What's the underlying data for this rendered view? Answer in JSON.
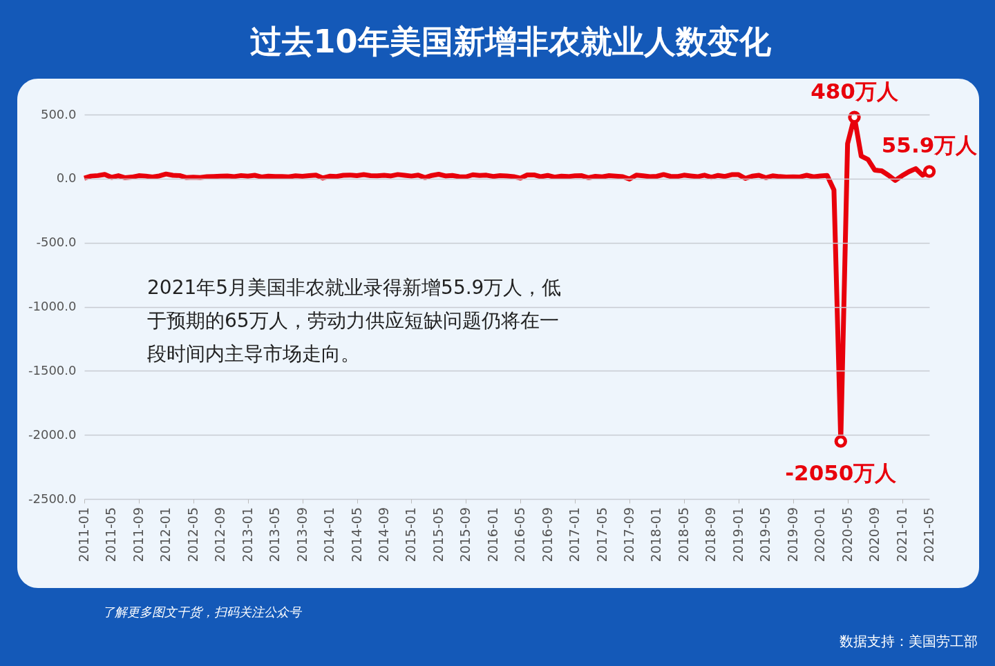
{
  "chart_data": {
    "type": "line",
    "title": "过去10年美国新增非农就业人数变化",
    "categories": [
      "2011-01",
      null,
      null,
      null,
      "2011-05",
      null,
      null,
      null,
      "2011-09",
      null,
      null,
      null,
      "2012-01",
      null,
      null,
      null,
      "2012-05",
      null,
      null,
      null,
      "2012-09",
      null,
      null,
      null,
      "2013-01",
      null,
      null,
      null,
      "2013-05",
      null,
      null,
      null,
      "2013-09",
      null,
      null,
      null,
      "2014-01",
      null,
      null,
      null,
      "2014-05",
      null,
      null,
      null,
      "2014-09",
      null,
      null,
      null,
      "2015-01",
      null,
      null,
      null,
      "2015-05",
      null,
      null,
      null,
      "2015-09",
      null,
      null,
      null,
      "2016-01",
      null,
      null,
      null,
      "2016-05",
      null,
      null,
      null,
      "2016-09",
      null,
      null,
      null,
      "2017-01",
      null,
      null,
      null,
      "2017-05",
      null,
      null,
      null,
      "2017-09",
      null,
      null,
      null,
      "2018-01",
      null,
      null,
      null,
      "2018-05",
      null,
      null,
      null,
      "2018-09",
      null,
      null,
      null,
      "2019-01",
      null,
      null,
      null,
      "2019-05",
      null,
      null,
      null,
      "2019-09",
      null,
      null,
      null,
      "2020-01",
      null,
      null,
      null,
      "2020-05",
      null,
      null,
      null,
      "2020-09",
      null,
      null,
      null,
      "2021-01",
      null,
      null,
      null,
      "2021-05"
    ],
    "series": [
      {
        "color": "#e8000b",
        "values": [
          4,
          20,
          24,
          33,
          10,
          23,
          7,
          12,
          23,
          20,
          13,
          21,
          36,
          26,
          24,
          8,
          11,
          9,
          15,
          17,
          19,
          21,
          16,
          24,
          19,
          26,
          13,
          19,
          17,
          17,
          14,
          22,
          18,
          23,
          27,
          5,
          19,
          17,
          26,
          28,
          23,
          31,
          23,
          22,
          26,
          21,
          32,
          26,
          20,
          27,
          8,
          25,
          34,
          21,
          25,
          15,
          14,
          30,
          25,
          27,
          17,
          23,
          21,
          16,
          4,
          29,
          29,
          15,
          25,
          12,
          19,
          16,
          22,
          23,
          7,
          18,
          14,
          23,
          19,
          15,
          -3,
          27,
          22,
          15,
          18,
          32,
          18,
          16,
          27,
          21,
          15,
          27,
          11,
          25,
          17,
          31,
          31,
          2,
          19,
          26,
          7,
          22,
          16,
          13,
          14,
          13,
          26,
          14,
          21,
          25,
          -88,
          -2050,
          273,
          480,
          176,
          149,
          66,
          61,
          26,
          -14,
          23,
          54,
          78,
          27,
          55.9
        ],
        "value_labels": [
          null,
          null,
          null,
          null,
          null,
          null,
          null,
          null,
          null,
          null,
          null,
          null,
          null,
          null,
          null,
          null,
          null,
          null,
          null,
          null,
          null,
          null,
          null,
          null,
          null,
          null,
          null,
          null,
          null,
          null,
          null,
          null,
          null,
          null,
          null,
          null,
          null,
          null,
          null,
          null,
          null,
          null,
          null,
          null,
          null,
          null,
          null,
          null,
          null,
          null,
          null,
          null,
          null,
          null,
          null,
          null,
          null,
          null,
          null,
          null,
          null,
          null,
          null,
          null,
          null,
          null,
          null,
          null,
          null,
          null,
          null,
          null,
          null,
          null,
          null,
          null,
          null,
          null,
          null,
          null,
          null,
          null,
          null,
          null,
          null,
          null,
          null,
          null,
          null,
          null,
          null,
          null,
          null,
          null,
          null,
          null,
          null,
          null,
          null,
          null,
          null,
          null,
          null,
          null,
          null,
          null,
          null,
          null,
          null,
          null,
          null,
          "-2050万人",
          null,
          "480万人",
          null,
          null,
          null,
          null,
          null,
          null,
          null,
          null,
          null,
          null,
          "55.9万人"
        ]
      }
    ],
    "ylim": [
      -2500,
      500
    ],
    "yticks": [
      {
        "value": -2500,
        "label": "-2500.0"
      },
      {
        "value": -2000,
        "label": "-2000.0"
      },
      {
        "value": -1500,
        "label": "-1500.0"
      },
      {
        "value": -1000,
        "label": "-1000.0"
      },
      {
        "value": -500,
        "label": "-500.0"
      },
      {
        "value": 0,
        "label": "0.0"
      },
      {
        "value": 500,
        "label": "500.0"
      }
    ],
    "grid": "y",
    "marker": "none",
    "line_style": "solid",
    "annotations": [
      "2021年5月美国非农就业录得新增55.9万人，低",
      "于预期的65万人，劳动力供应短缺问题仍将在一",
      "段时间内主导市场走向。",
      "了解更多图文干货，扫码关注公众号",
      "数据支持：美国劳工部"
    ]
  }
}
